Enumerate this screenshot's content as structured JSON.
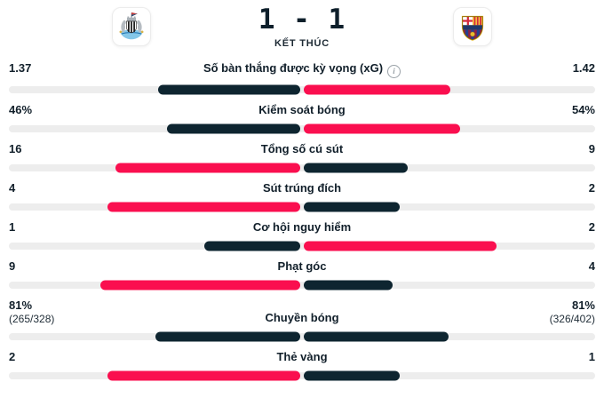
{
  "header": {
    "score": "1 - 1",
    "status": "KẾT THÚC",
    "home_crest": "newcastle-united-crest",
    "away_crest": "fc-barcelona-crest"
  },
  "icons": {
    "info": "i"
  },
  "colors": {
    "pink": "#fa0f4f",
    "navy": "#0e2530",
    "track": "#ededed",
    "text": "#111f2a"
  },
  "stats": [
    {
      "label": "Số bàn thắng được kỳ vọng (xG)",
      "home": "1.37",
      "away": "1.42",
      "home_num": 1.37,
      "away_num": 1.42,
      "highlight": "away",
      "has_info": true
    },
    {
      "label": "Kiểm soát bóng",
      "home": "46%",
      "away": "54%",
      "home_num": 46,
      "away_num": 54,
      "highlight": "away"
    },
    {
      "label": "Tổng số cú sút",
      "home": "16",
      "away": "9",
      "home_num": 16,
      "away_num": 9,
      "highlight": "home"
    },
    {
      "label": "Sút trúng đích",
      "home": "4",
      "away": "2",
      "home_num": 4,
      "away_num": 2,
      "highlight": "home"
    },
    {
      "label": "Cơ hội nguy hiểm",
      "home": "1",
      "away": "2",
      "home_num": 1,
      "away_num": 2,
      "highlight": "away"
    },
    {
      "label": "Phạt góc",
      "home": "9",
      "away": "4",
      "home_num": 9,
      "away_num": 4,
      "highlight": "home"
    },
    {
      "label": "Chuyền bóng",
      "home": "81%",
      "away": "81%",
      "home_sub": "(265/328)",
      "away_sub": "(326/402)",
      "home_num": 81,
      "away_num": 81,
      "highlight": "none"
    },
    {
      "label": "Thẻ vàng",
      "home": "2",
      "away": "1",
      "home_num": 2,
      "away_num": 1,
      "highlight": "home"
    }
  ]
}
